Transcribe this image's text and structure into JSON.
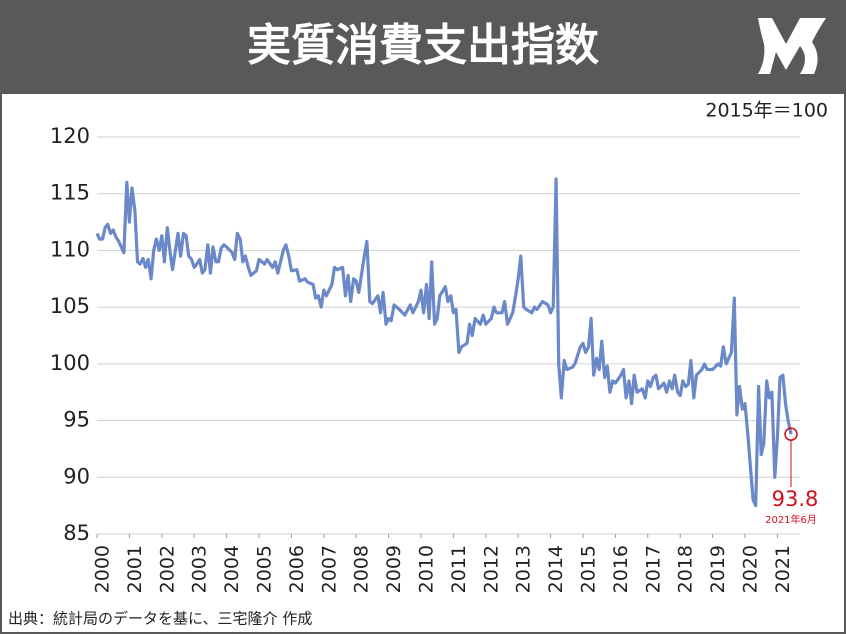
{
  "chart_data": {
    "type": "line",
    "title": "実質消費支出指数",
    "unit_label": "2015年＝100",
    "source": "出典：統計局のデータを基に、三宅隆介 作成",
    "annotations": [
      "93.8",
      "2021年6月"
    ],
    "color": "#6b88c9",
    "annotation_color": "#d0101c",
    "grid": true,
    "xlim": [
      2000,
      2021.42
    ],
    "ylim": [
      85,
      120
    ],
    "yticks": [
      85,
      90,
      95,
      100,
      105,
      110,
      115,
      120
    ],
    "xticks": [
      2000,
      2001,
      2002,
      2003,
      2004,
      2005,
      2006,
      2007,
      2008,
      2009,
      2010,
      2011,
      2012,
      2013,
      2014,
      2015,
      2016,
      2017,
      2018,
      2019,
      2020,
      2021
    ],
    "x": [
      2000,
      2000.08,
      2000.17,
      2000.25,
      2000.33,
      2000.42,
      2000.5,
      2000.58,
      2000.67,
      2000.75,
      2000.83,
      2000.92,
      2001,
      2001.08,
      2001.17,
      2001.25,
      2001.33,
      2001.42,
      2001.5,
      2001.58,
      2001.67,
      2001.75,
      2001.83,
      2001.92,
      2002,
      2002.08,
      2002.17,
      2002.25,
      2002.33,
      2002.42,
      2002.5,
      2002.58,
      2002.67,
      2002.75,
      2002.83,
      2002.92,
      2003,
      2003.08,
      2003.17,
      2003.25,
      2003.33,
      2003.42,
      2003.5,
      2003.58,
      2003.67,
      2003.75,
      2003.83,
      2003.92,
      2004,
      2004.17,
      2004.25,
      2004.33,
      2004.42,
      2004.5,
      2004.58,
      2004.67,
      2004.75,
      2004.92,
      2005,
      2005.17,
      2005.25,
      2005.42,
      2005.5,
      2005.58,
      2005.75,
      2005.83,
      2005.92,
      2006,
      2006.17,
      2006.25,
      2006.42,
      2006.5,
      2006.67,
      2006.75,
      2006.83,
      2006.92,
      2007,
      2007.08,
      2007.25,
      2007.33,
      2007.42,
      2007.58,
      2007.67,
      2007.75,
      2007.83,
      2007.92,
      2008,
      2008.08,
      2008.25,
      2008.33,
      2008.42,
      2008.5,
      2008.67,
      2008.75,
      2008.83,
      2008.92,
      2009,
      2009.08,
      2009.17,
      2009.33,
      2009.5,
      2009.67,
      2009.75,
      2009.92,
      2010,
      2010.08,
      2010.17,
      2010.25,
      2010.33,
      2010.42,
      2010.5,
      2010.58,
      2010.75,
      2010.83,
      2010.92,
      2011,
      2011.08,
      2011.17,
      2011.25,
      2011.42,
      2011.5,
      2011.58,
      2011.67,
      2011.83,
      2011.92,
      2012,
      2012.17,
      2012.25,
      2012.33,
      2012.5,
      2012.58,
      2012.67,
      2012.75,
      2012.83,
      2012.92,
      2013,
      2013.08,
      2013.17,
      2013.25,
      2013.42,
      2013.5,
      2013.58,
      2013.75,
      2013.92,
      2014,
      2014.08,
      2014.17,
      2014.25,
      2014.33,
      2014.42,
      2014.5,
      2014.67,
      2014.75,
      2014.92,
      2015,
      2015.08,
      2015.17,
      2015.25,
      2015.33,
      2015.42,
      2015.5,
      2015.58,
      2015.67,
      2015.75,
      2015.83,
      2015.92,
      2016,
      2016.17,
      2016.25,
      2016.33,
      2016.42,
      2016.5,
      2016.58,
      2016.67,
      2016.83,
      2016.92,
      2017,
      2017.08,
      2017.17,
      2017.25,
      2017.33,
      2017.5,
      2017.58,
      2017.67,
      2017.75,
      2017.83,
      2017.92,
      2018,
      2018.08,
      2018.17,
      2018.25,
      2018.33,
      2018.42,
      2018.5,
      2018.67,
      2018.75,
      2018.83,
      2019,
      2019.17,
      2019.25,
      2019.33,
      2019.42,
      2019.5,
      2019.58,
      2019.67,
      2019.75,
      2019.83,
      2019.92,
      2020,
      2020.08,
      2020.25,
      2020.33,
      2020.42,
      2020.5,
      2020.58,
      2020.67,
      2020.75,
      2020.83,
      2020.92,
      2021,
      2021.08,
      2021.17,
      2021.25,
      2021.33,
      2021.42
    ],
    "values": [
      111.5,
      111,
      111,
      112,
      112.3,
      111.5,
      111.8,
      111.2,
      110.8,
      110.3,
      109.8,
      116,
      112.5,
      115.5,
      113.5,
      109,
      108.8,
      109.3,
      108.5,
      109.2,
      107.5,
      110,
      111,
      110,
      111.3,
      109,
      112,
      110,
      108.3,
      110,
      111.5,
      109.5,
      111.5,
      111.3,
      109.5,
      109.2,
      108.5,
      108.8,
      109.2,
      108,
      108.3,
      110.5,
      108,
      110.3,
      109,
      109,
      110.2,
      110.5,
      110.3,
      109.8,
      109.2,
      111.5,
      111,
      109,
      109.5,
      108.5,
      107.8,
      108.2,
      109.2,
      108.8,
      109.2,
      108.5,
      109,
      108,
      110,
      110.5,
      109.5,
      108.2,
      108.3,
      107.3,
      107.5,
      107.2,
      107,
      105.8,
      106,
      105,
      106.5,
      106,
      107,
      108.5,
      108.3,
      108.5,
      106,
      107.8,
      105.5,
      107.5,
      107.3,
      106.3,
      109.5,
      110.8,
      105.5,
      105.3,
      106,
      104.5,
      106.3,
      103.5,
      104,
      103.8,
      105.2,
      104.8,
      104.3,
      105.2,
      104.5,
      105.5,
      106.5,
      104.5,
      107,
      104,
      109,
      103.5,
      104,
      106,
      106.8,
      105.5,
      106,
      104.5,
      104.8,
      101,
      101.5,
      101.8,
      103.5,
      102.5,
      104,
      103.5,
      104.3,
      103.5,
      104,
      105,
      104.5,
      104.5,
      105.5,
      103.5,
      104,
      104.5,
      106,
      107.5,
      109.5,
      105,
      104.8,
      104.5,
      105,
      104.8,
      105.5,
      105.2,
      104.5,
      105,
      116.3,
      100,
      97,
      100.3,
      99.5,
      99.7,
      100,
      101.5,
      101.8,
      101,
      101.5,
      104,
      99,
      100.5,
      99.5,
      102,
      98.8,
      99.8,
      97.5,
      98.5,
      98.3,
      99,
      99.5,
      97,
      98.5,
      96.5,
      99,
      97.5,
      97.8,
      97,
      98.5,
      98,
      98.8,
      99,
      97.8,
      98.3,
      97.5,
      98.5,
      97.8,
      99,
      97.5,
      97.2,
      98.5,
      98,
      98.2,
      100.3,
      97,
      99,
      99.5,
      100,
      99.5,
      99.5,
      100,
      99.8,
      101.5,
      100,
      100.5,
      101,
      105.8,
      95.5,
      98,
      96,
      96.5,
      94,
      88,
      87.5,
      98,
      92,
      93,
      98.5,
      97,
      97.5,
      90,
      93.5,
      98.8,
      99,
      96.5,
      95,
      93.8
    ]
  }
}
